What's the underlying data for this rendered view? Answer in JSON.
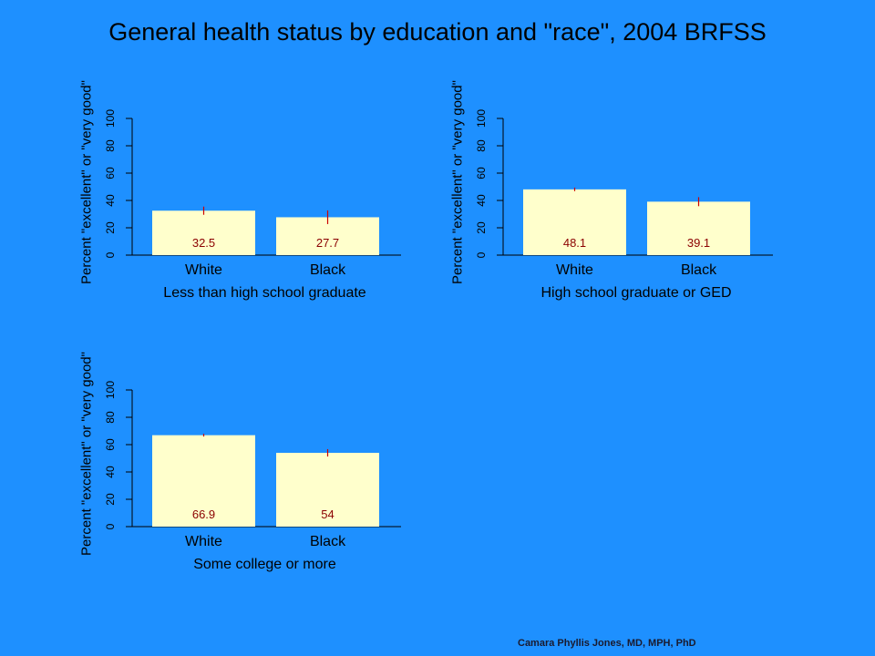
{
  "title": "General health status by education and \"race\", 2004 BRFSS",
  "credit": "Camara Phyllis Jones, MD, MPH, PhD",
  "colors": {
    "background": "#1E90FF",
    "bar": "#FFFFCC",
    "error_bar": "#CC0000",
    "data_label": "#8B0000"
  },
  "chart_data": [
    {
      "type": "bar",
      "categories": [
        "White",
        "Black"
      ],
      "values": [
        32.5,
        27.7
      ],
      "error_low": [
        29.5,
        22.7
      ],
      "error_high": [
        35.5,
        32.7
      ],
      "data_labels": [
        "32.5",
        "27.7"
      ],
      "xlabel": "Less than high school graduate",
      "ylabel": "Percent \"excellent\" or \"very good\"",
      "ylim": [
        0,
        100
      ],
      "yticks": [
        "0",
        "20",
        "40",
        "60",
        "80",
        "100"
      ]
    },
    {
      "type": "bar",
      "categories": [
        "White",
        "Black"
      ],
      "values": [
        48.1,
        39.1
      ],
      "error_low": [
        46.8,
        35.8
      ],
      "error_high": [
        49.4,
        42.4
      ],
      "data_labels": [
        "48.1",
        "39.1"
      ],
      "xlabel": "High school graduate or GED",
      "ylabel": "Percent \"excellent\" or \"very good\"",
      "ylim": [
        0,
        100
      ],
      "yticks": [
        "0",
        "20",
        "40",
        "60",
        "80",
        "100"
      ]
    },
    {
      "type": "bar",
      "categories": [
        "White",
        "Black"
      ],
      "values": [
        66.9,
        54
      ],
      "error_low": [
        65.9,
        51.3
      ],
      "error_high": [
        67.9,
        56.7
      ],
      "data_labels": [
        "66.9",
        "54"
      ],
      "xlabel": "Some college or more",
      "ylabel": "Percent \"excellent\" or \"very good\"",
      "ylim": [
        0,
        100
      ],
      "yticks": [
        "0",
        "20",
        "40",
        "60",
        "80",
        "100"
      ]
    }
  ]
}
